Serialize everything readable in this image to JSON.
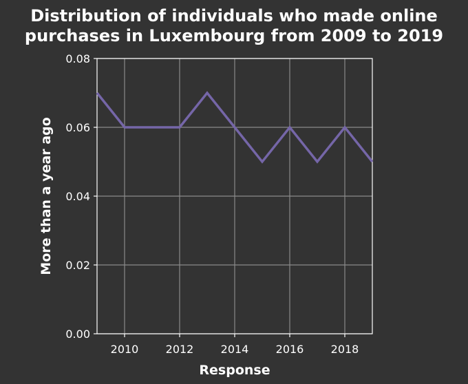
{
  "chart_data": {
    "type": "line",
    "title_lines": [
      "Distribution of individuals who made online",
      "purchases in Luxembourg from 2009 to 2019"
    ],
    "xlabel": "Response",
    "ylabel": "More than a year ago",
    "xlim": [
      2009,
      2019
    ],
    "ylim": [
      0,
      0.08
    ],
    "xticks": [
      2010,
      2012,
      2014,
      2016,
      2018
    ],
    "xtick_labels": [
      "2010",
      "2012",
      "2014",
      "2016",
      "2018"
    ],
    "yticks": [
      0,
      0.02,
      0.04,
      0.06,
      0.08
    ],
    "ytick_labels": [
      "0.00",
      "0.02",
      "0.04",
      "0.06",
      "0.08"
    ],
    "grid": true,
    "x": [
      2009,
      2010,
      2011,
      2012,
      2013,
      2014,
      2015,
      2016,
      2017,
      2018,
      2019
    ],
    "series": [
      {
        "values": [
          0.07,
          0.06,
          0.06,
          0.06,
          0.07,
          0.06,
          0.05,
          0.06,
          0.05,
          0.06,
          0.05
        ],
        "color": "#7566a8"
      }
    ],
    "colors": {
      "background": "#333333",
      "text": "#ffffff",
      "grid": "#8a8a8a"
    }
  }
}
